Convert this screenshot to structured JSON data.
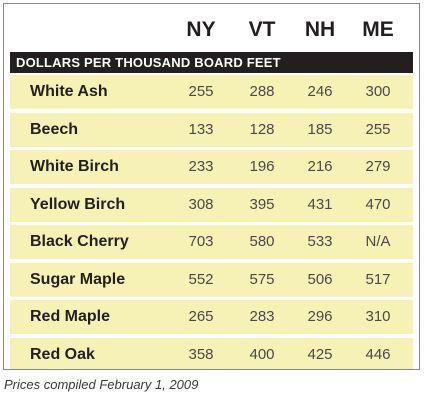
{
  "chart_data": {
    "type": "table",
    "columns": [
      "NY",
      "VT",
      "NH",
      "ME"
    ],
    "subheader": "DOLLARS PER THOUSAND BOARD FEET",
    "rows": [
      {
        "name": "White Ash",
        "values": [
          "255",
          "288",
          "246",
          "300"
        ]
      },
      {
        "name": "Beech",
        "values": [
          "133",
          "128",
          "185",
          "255"
        ]
      },
      {
        "name": "White Birch",
        "values": [
          "233",
          "196",
          "216",
          "279"
        ]
      },
      {
        "name": "Yellow Birch",
        "values": [
          "308",
          "395",
          "431",
          "470"
        ]
      },
      {
        "name": "Black Cherry",
        "values": [
          "703",
          "580",
          "533",
          "N/A"
        ]
      },
      {
        "name": "Sugar Maple",
        "values": [
          "552",
          "575",
          "506",
          "517"
        ]
      },
      {
        "name": "Red Maple",
        "values": [
          "265",
          "283",
          "296",
          "310"
        ]
      },
      {
        "name": "Red Oak",
        "values": [
          "358",
          "400",
          "425",
          "446"
        ]
      }
    ],
    "footnote": "Prices compiled February 1, 2009"
  },
  "colors": {
    "row_fill": "#f6f1b5",
    "band_fill": "#231f20",
    "text": "#231f20"
  }
}
